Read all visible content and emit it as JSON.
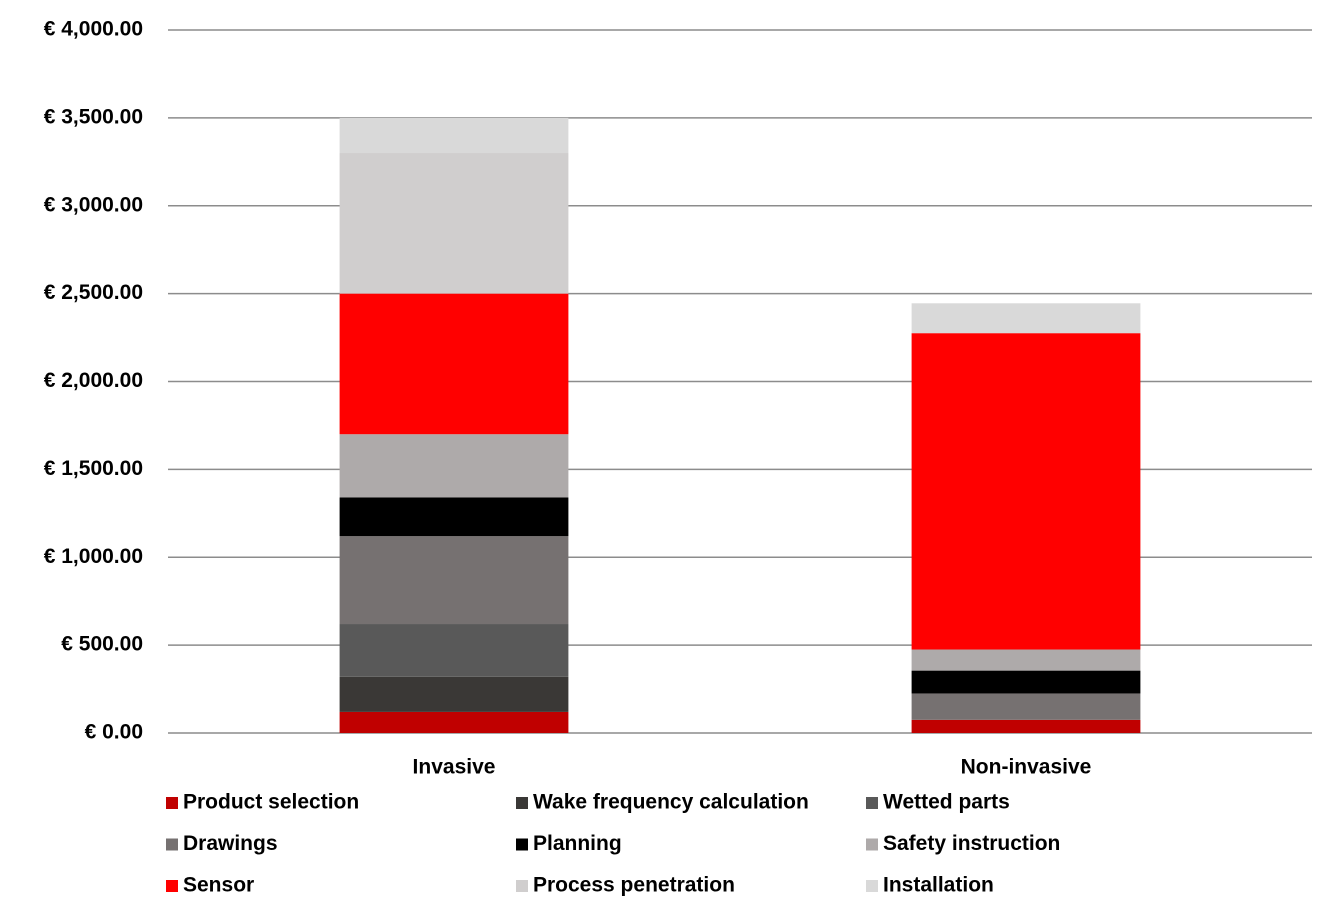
{
  "chart_data": {
    "type": "stacked-bar",
    "categories": [
      "Invasive",
      "Non-invasive"
    ],
    "series": [
      {
        "name": "Product selection",
        "color": "#c00000",
        "values": [
          120,
          75
        ]
      },
      {
        "name": "Wake frequency calculation",
        "color": "#3a3836",
        "values": [
          200,
          0
        ]
      },
      {
        "name": "Wetted parts",
        "color": "#595959",
        "values": [
          300,
          0
        ]
      },
      {
        "name": "Drawings",
        "color": "#767171",
        "values": [
          500,
          150
        ]
      },
      {
        "name": "Planning",
        "color": "#000000",
        "values": [
          220,
          130
        ]
      },
      {
        "name": "Safety instruction",
        "color": "#aeaaaa",
        "values": [
          360,
          120
        ]
      },
      {
        "name": "Sensor",
        "color": "#ff0000",
        "values": [
          800,
          1800
        ]
      },
      {
        "name": "Process penetration",
        "color": "#d0cece",
        "values": [
          800,
          0
        ]
      },
      {
        "name": "Installation",
        "color": "#d9d9d9",
        "values": [
          200,
          170
        ]
      }
    ],
    "ylim": [
      0,
      4000
    ],
    "yticks": [
      {
        "value": 0,
        "label": "€ 0.00"
      },
      {
        "value": 500,
        "label": "€ 500.00"
      },
      {
        "value": 1000,
        "label": "€ 1,000.00"
      },
      {
        "value": 1500,
        "label": "€ 1,500.00"
      },
      {
        "value": 2000,
        "label": "€ 2,000.00"
      },
      {
        "value": 2500,
        "label": "€ 2,500.00"
      },
      {
        "value": 3000,
        "label": "€ 3,000.00"
      },
      {
        "value": 3500,
        "label": "€ 3,500.00"
      },
      {
        "value": 4000,
        "label": "€ 4,000.00"
      }
    ],
    "grid": true,
    "legend": "bottom"
  }
}
